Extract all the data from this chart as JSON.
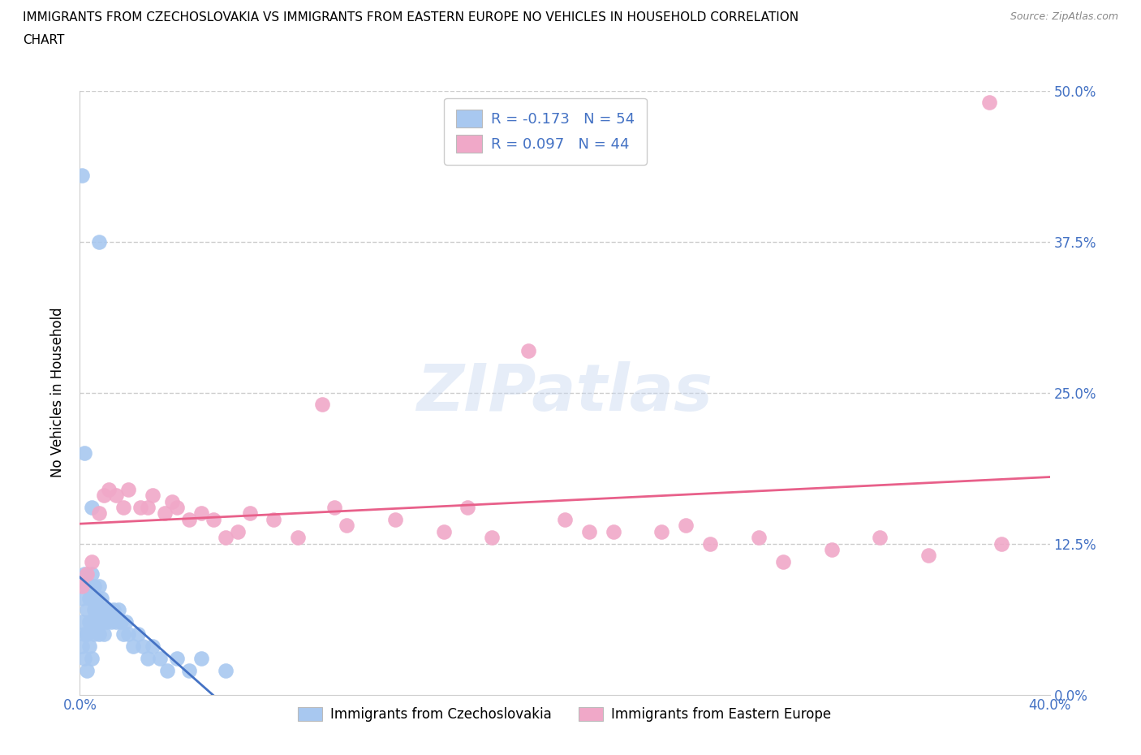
{
  "title_line1": "IMMIGRANTS FROM CZECHOSLOVAKIA VS IMMIGRANTS FROM EASTERN EUROPE NO VEHICLES IN HOUSEHOLD CORRELATION",
  "title_line2": "CHART",
  "source": "Source: ZipAtlas.com",
  "ylabel": "No Vehicles in Household",
  "xmin": 0.0,
  "xmax": 0.4,
  "ymin": 0.0,
  "ymax": 0.5,
  "color_blue": "#a8c8f0",
  "color_pink": "#f0a8c8",
  "line_color_blue": "#4472c4",
  "line_color_pink": "#e8608a",
  "R_blue": -0.173,
  "N_blue": 54,
  "R_pink": 0.097,
  "N_pink": 44,
  "legend_label_blue": "Immigrants from Czechoslovakia",
  "legend_label_pink": "Immigrants from Eastern Europe",
  "watermark": "ZIPatlas",
  "blue_x": [
    0.001,
    0.001,
    0.001,
    0.002,
    0.002,
    0.002,
    0.003,
    0.003,
    0.003,
    0.003,
    0.004,
    0.004,
    0.004,
    0.005,
    0.005,
    0.005,
    0.005,
    0.006,
    0.006,
    0.006,
    0.007,
    0.007,
    0.008,
    0.008,
    0.008,
    0.009,
    0.009,
    0.01,
    0.01,
    0.011,
    0.012,
    0.013,
    0.014,
    0.015,
    0.016,
    0.017,
    0.018,
    0.019,
    0.02,
    0.022,
    0.024,
    0.026,
    0.028,
    0.03,
    0.033,
    0.036,
    0.04,
    0.045,
    0.05,
    0.06,
    0.001,
    0.002,
    0.005,
    0.008
  ],
  "blue_y": [
    0.04,
    0.06,
    0.08,
    0.03,
    0.05,
    0.1,
    0.02,
    0.05,
    0.07,
    0.09,
    0.04,
    0.06,
    0.08,
    0.03,
    0.06,
    0.08,
    0.1,
    0.05,
    0.07,
    0.09,
    0.06,
    0.08,
    0.05,
    0.07,
    0.09,
    0.06,
    0.08,
    0.05,
    0.07,
    0.06,
    0.07,
    0.06,
    0.07,
    0.06,
    0.07,
    0.06,
    0.05,
    0.06,
    0.05,
    0.04,
    0.05,
    0.04,
    0.03,
    0.04,
    0.03,
    0.02,
    0.03,
    0.02,
    0.03,
    0.02,
    0.43,
    0.2,
    0.155,
    0.375
  ],
  "pink_x": [
    0.001,
    0.003,
    0.005,
    0.008,
    0.01,
    0.012,
    0.015,
    0.018,
    0.02,
    0.025,
    0.028,
    0.03,
    0.035,
    0.038,
    0.04,
    0.045,
    0.05,
    0.055,
    0.06,
    0.065,
    0.07,
    0.08,
    0.09,
    0.1,
    0.105,
    0.11,
    0.13,
    0.15,
    0.16,
    0.17,
    0.185,
    0.2,
    0.21,
    0.22,
    0.24,
    0.25,
    0.26,
    0.28,
    0.29,
    0.31,
    0.33,
    0.35,
    0.38,
    0.375
  ],
  "pink_y": [
    0.09,
    0.1,
    0.11,
    0.15,
    0.165,
    0.17,
    0.165,
    0.155,
    0.17,
    0.155,
    0.155,
    0.165,
    0.15,
    0.16,
    0.155,
    0.145,
    0.15,
    0.145,
    0.13,
    0.135,
    0.15,
    0.145,
    0.13,
    0.24,
    0.155,
    0.14,
    0.145,
    0.135,
    0.155,
    0.13,
    0.285,
    0.145,
    0.135,
    0.135,
    0.135,
    0.14,
    0.125,
    0.13,
    0.11,
    0.12,
    0.13,
    0.115,
    0.125,
    0.49
  ]
}
